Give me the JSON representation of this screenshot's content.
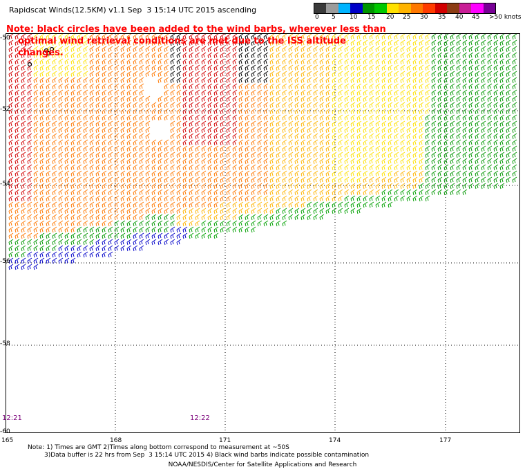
{
  "title": "Rapidscat Winds(12.5KM) v1.1 Sep  3 15:14 UTC 2015 ascending",
  "note": {
    "line1": "Note: black circles have been added to the wind barbs, wherever less than",
    "line2": "optimal wind retrieval conditions are met due to the ISS altitude changes."
  },
  "legend": {
    "labels": [
      "0",
      "5",
      "10",
      "15",
      "20",
      "25",
      "30",
      "35",
      "40",
      "45",
      ">50 knots"
    ],
    "colors": [
      "#3a3a3a",
      "#9c9c9c",
      "#00b4ff",
      "#0000c8",
      "#009600",
      "#00c800",
      "#ffe100",
      "#ffb400",
      "#ff7800",
      "#ff3c00",
      "#d20000",
      "#8c3c14",
      "#c81e96",
      "#ff00ff",
      "#780096"
    ]
  },
  "axes": {
    "lat_labels": [
      "-50",
      "-52",
      "-54",
      "-56",
      "-58",
      "-60"
    ],
    "lon_labels": [
      "165",
      "168",
      "171",
      "174",
      "177"
    ]
  },
  "swath_times": [
    "12:21",
    "12:22"
  ],
  "footer": {
    "line1": "Note: 1) Times are GMT 2)Times along bottom correspond to measurement at ~50S",
    "line2": "3)Data buffer is 22 hrs from Sep  3 15:14 UTC 2015 4) Black wind barbs indicate possible contamination",
    "credit": "NOAA/NESDIS/Center for Satellite Applications and Research"
  }
}
